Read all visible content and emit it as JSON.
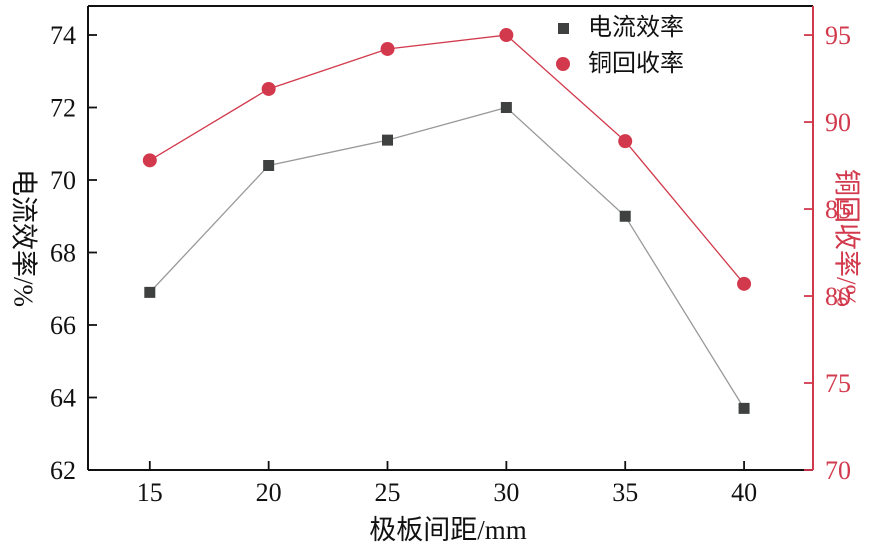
{
  "chart_data": {
    "type": "line",
    "x": [
      15,
      20,
      25,
      30,
      35,
      40
    ],
    "xticks": [
      15,
      20,
      25,
      30,
      35,
      40
    ],
    "xlim": [
      12.4,
      42.9
    ],
    "ylim_left": [
      62,
      74.8
    ],
    "yticks_left": [
      62,
      64,
      66,
      68,
      70,
      72,
      74
    ],
    "ylim_right": [
      70,
      96.67
    ],
    "yticks_right": [
      70,
      75,
      80,
      85,
      90,
      95
    ],
    "xlabel": "极板间距/mm",
    "ylabel_left": "电流效率/%",
    "ylabel_right": "铜回收率/%",
    "axis_color": "#111111",
    "right_axis_color": "#d2394c",
    "grid": false,
    "legend_position": "top-right",
    "series": [
      {
        "name": "电流效率",
        "axis": "left",
        "marker": "square",
        "marker_color": "#3f4040",
        "line_color": "#999999",
        "values": [
          66.9,
          70.4,
          71.1,
          72.0,
          69.0,
          63.7
        ]
      },
      {
        "name": "铜回收率",
        "axis": "right",
        "marker": "circle",
        "marker_color": "#d2394c",
        "line_color": "#d2394c",
        "values": [
          87.8,
          91.9,
          94.2,
          95.0,
          88.9,
          80.7
        ]
      }
    ]
  }
}
